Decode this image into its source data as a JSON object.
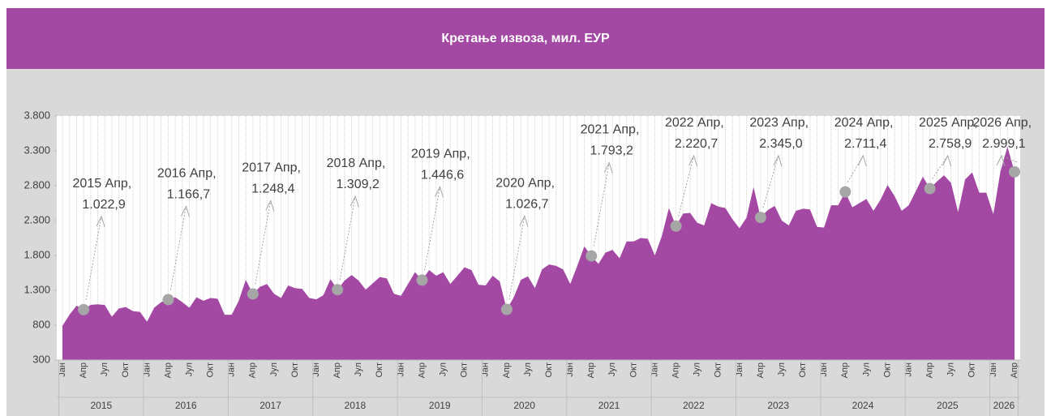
{
  "chart_data": {
    "type": "area",
    "title": "Кретање извоза, мил. ЕУР",
    "color": "#a349a4",
    "x_grid": true,
    "ylim": [
      300,
      3800
    ],
    "yticks": [
      300,
      800,
      {
        "value": 1300,
        "label": "1.300"
      },
      {
        "value": 1800,
        "label": "1.800"
      },
      {
        "value": 2300,
        "label": "2.300"
      },
      {
        "value": 2800,
        "label": "2.800"
      },
      {
        "value": 3300,
        "label": "3.300"
      },
      {
        "value": 3800,
        "label": "3.800"
      }
    ],
    "year_groups": [
      "2015",
      "2016",
      "2017",
      "2018",
      "2019",
      "2020",
      "2021",
      "2022",
      "2023",
      "2024",
      "2025",
      "2026"
    ],
    "categories": [
      "Јан",
      null,
      null,
      "Апр",
      null,
      null,
      "Јул",
      null,
      null,
      "Окт",
      null,
      null,
      "Јан",
      null,
      null,
      "Апр",
      null,
      null,
      "Јул",
      null,
      null,
      "Окт",
      null,
      null,
      "Јан",
      null,
      null,
      "Апр",
      null,
      null,
      "Јул",
      null,
      null,
      "Окт",
      null,
      null,
      "Јан",
      null,
      null,
      "Апр",
      null,
      null,
      "Јул",
      null,
      null,
      "Окт",
      null,
      null,
      "Јан",
      null,
      null,
      "Апр",
      null,
      null,
      "Јул",
      null,
      null,
      "Окт",
      null,
      null,
      "Јан",
      null,
      null,
      "Апр",
      null,
      null,
      "Јул",
      null,
      null,
      "Окт",
      null,
      null,
      "Јан",
      null,
      null,
      "Апр",
      null,
      null,
      "Јул",
      null,
      null,
      "Окт",
      null,
      null,
      "Јан",
      null,
      null,
      "Апр",
      null,
      null,
      "Јул",
      null,
      null,
      "Окт",
      null,
      null,
      "Јан",
      null,
      null,
      "Апр",
      null,
      null,
      "Јул",
      null,
      null,
      "Окт",
      null,
      null,
      "Јан",
      null,
      null,
      "Апр",
      null,
      null,
      "Јул",
      null,
      null,
      "Окт",
      null,
      null,
      "Јан",
      null,
      null,
      "Апр",
      null,
      null,
      "Јул",
      null,
      null,
      "Окт",
      null,
      null,
      "Јан",
      null,
      null,
      "Апр"
    ],
    "values": [
      790,
      950,
      1080,
      1022.9,
      1090,
      1100,
      1090,
      920,
      1040,
      1060,
      1000,
      990,
      850,
      1050,
      1130,
      1166.7,
      1200,
      1130,
      1050,
      1200,
      1150,
      1190,
      1180,
      950,
      950,
      1150,
      1450,
      1248.4,
      1350,
      1390,
      1250,
      1190,
      1370,
      1330,
      1320,
      1190,
      1170,
      1230,
      1460,
      1309.2,
      1440,
      1520,
      1440,
      1310,
      1400,
      1490,
      1470,
      1250,
      1220,
      1390,
      1560,
      1446.6,
      1590,
      1510,
      1560,
      1390,
      1510,
      1630,
      1590,
      1380,
      1370,
      1510,
      1430,
      1026.7,
      1200,
      1450,
      1500,
      1330,
      1600,
      1670,
      1650,
      1600,
      1390,
      1650,
      1930,
      1793.2,
      1680,
      1840,
      1880,
      1760,
      2000,
      2000,
      2050,
      2040,
      1800,
      2080,
      2480,
      2220.7,
      2400,
      2410,
      2270,
      2230,
      2550,
      2500,
      2480,
      2320,
      2190,
      2340,
      2780,
      2345.0,
      2450,
      2510,
      2300,
      2230,
      2440,
      2470,
      2460,
      2210,
      2200,
      2520,
      2520,
      2711.4,
      2490,
      2550,
      2610,
      2440,
      2600,
      2810,
      2650,
      2440,
      2520,
      2720,
      2930,
      2758.9,
      2860,
      2950,
      2840,
      2420,
      2890,
      2990,
      2700,
      2700,
      2390,
      3000,
      3360,
      2999.1
    ],
    "value_labels": [
      null,
      null,
      null,
      "2015 Апр, 1.022,9",
      null,
      null,
      null,
      null,
      null,
      null,
      null,
      null,
      null,
      null,
      null,
      "2016 Апр, 1.166,7",
      null,
      null,
      null,
      null,
      null,
      null,
      null,
      null,
      null,
      null,
      null,
      "2017 Апр, 1.248,4",
      null,
      null,
      null,
      null,
      null,
      null,
      null,
      null,
      null,
      null,
      null,
      "2018 Апр, 1.309,2",
      null,
      null,
      null,
      null,
      null,
      null,
      null,
      null,
      null,
      null,
      null,
      "2019 Апр, 1.446,6",
      null,
      null,
      null,
      null,
      null,
      null,
      null,
      null,
      null,
      null,
      null,
      "2020 Апр, 1.026,7",
      null,
      null,
      null,
      null,
      null,
      null,
      null,
      null,
      null,
      null,
      null,
      "2021 Апр, 1.793,2",
      null,
      null,
      null,
      null,
      null,
      null,
      null,
      null,
      null,
      null,
      null,
      "2022 Апр, 2.220,7",
      null,
      null,
      null,
      null,
      null,
      null,
      null,
      null,
      null,
      null,
      null,
      "2023 Апр, 2.345,0",
      null,
      null,
      null,
      null,
      null,
      null,
      null,
      null,
      null,
      null,
      null,
      "2024 Апр, 2.711,4",
      null,
      null,
      null,
      null,
      null,
      null,
      null,
      null,
      null,
      null,
      null,
      "2025 Апр, 2.758,9",
      null,
      null,
      null,
      null,
      null,
      null,
      null,
      null,
      null,
      null,
      null,
      "2026 Апр, 2.999,1"
    ]
  }
}
